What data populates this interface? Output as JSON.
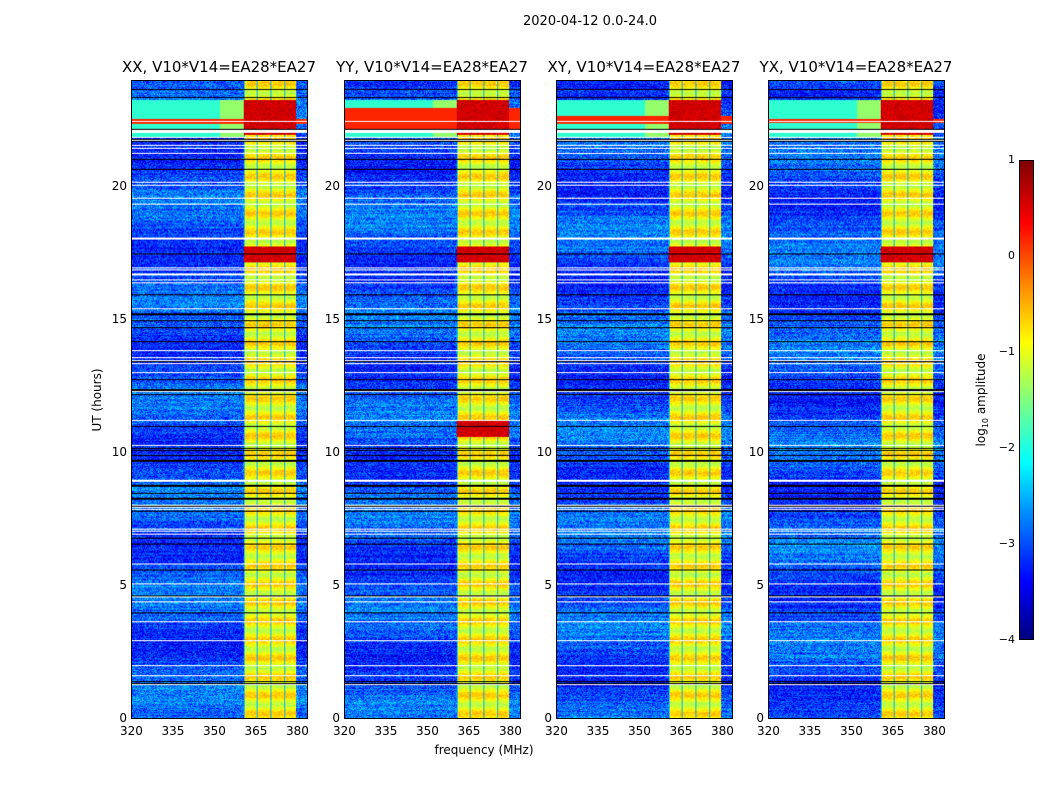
{
  "chart_data": {
    "type": "heatmap",
    "title": "2020-04-12 0.0-24.0",
    "xlabel": "frequency (MHz)",
    "ylabel": "UT (hours)",
    "xlim": [
      320,
      384
    ],
    "ylim": [
      0,
      24
    ],
    "xticks": [
      "320",
      "335",
      "350",
      "365",
      "380"
    ],
    "xtick_values": [
      320,
      335,
      350,
      365,
      380
    ],
    "yticks": [
      "0",
      "5",
      "10",
      "15",
      "20"
    ],
    "ytick_values": [
      0,
      5,
      10,
      15,
      20
    ],
    "panels": [
      {
        "title": "XX, V10*V14=EA28*EA27",
        "rfi_band_hours": [
          22.4,
          22.6
        ]
      },
      {
        "title": "YY, V10*V14=EA28*EA27",
        "rfi_band_hours": [
          22.2,
          23.0
        ]
      },
      {
        "title": "XY, V10*V14=EA28*EA27",
        "rfi_band_hours": [
          22.4,
          22.7
        ]
      },
      {
        "title": "YX, V10*V14=EA28*EA27",
        "rfi_band_hours": [
          22.45,
          22.6
        ]
      }
    ],
    "bright_band_mhz": [
      360.5,
      380
    ],
    "colorbar": {
      "label": "log10 amplitude",
      "label_main": "log",
      "label_sub": "10",
      "label_rest": " amplitude",
      "range": [
        -4,
        1
      ],
      "ticks": [
        "1",
        "0",
        "−1",
        "−2",
        "−3",
        "−4"
      ],
      "tick_values": [
        1,
        0,
        -1,
        -2,
        -3,
        -4
      ],
      "colormap": "jet"
    }
  }
}
